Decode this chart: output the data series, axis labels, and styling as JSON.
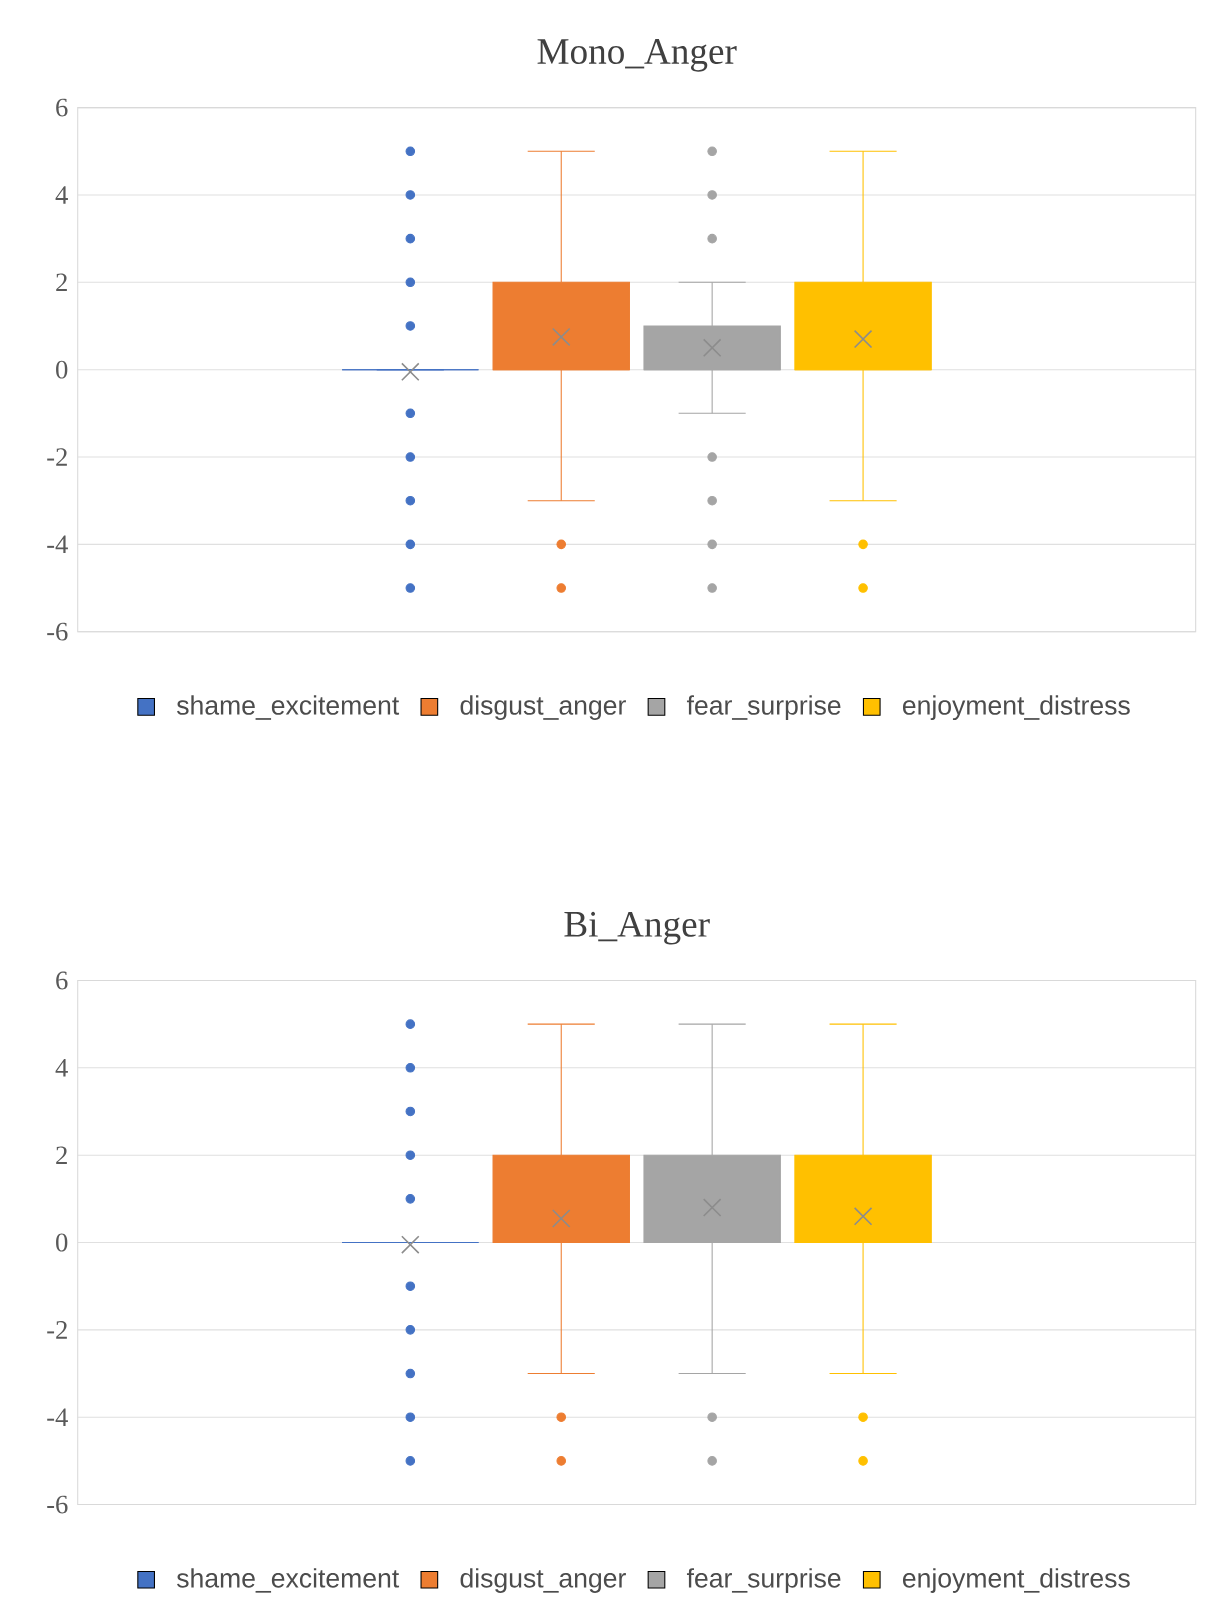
{
  "chart_data": [
    {
      "type": "box",
      "title": "Mono_Anger",
      "categories": [
        null
      ],
      "ylim": [
        -6,
        6
      ],
      "yticks": [
        -6,
        -4,
        -2,
        0,
        2,
        4,
        6
      ],
      "grid": "y",
      "legend": "bottom",
      "series": [
        {
          "name": "shame_excitement",
          "color": "#4472c4",
          "boxes": [
            {
              "low": 0,
              "q1": 0,
              "median": 0,
              "q3": 0,
              "high": 0,
              "mean": -0.05,
              "outliers": [
                5,
                4,
                3,
                2,
                1,
                -1,
                -2,
                -3,
                -4,
                -5
              ]
            }
          ]
        },
        {
          "name": "disgust_anger",
          "color": "#ed7d31",
          "boxes": [
            {
              "low": -3,
              "q1": 0,
              "median": 0,
              "q3": 2,
              "high": 5,
              "mean": 0.75,
              "outliers": [
                -4,
                -5
              ]
            }
          ]
        },
        {
          "name": "fear_surprise",
          "color": "#a5a5a5",
          "boxes": [
            {
              "low": -1,
              "q1": 0,
              "median": 0,
              "q3": 1,
              "high": 2,
              "mean": 0.5,
              "outliers": [
                5,
                4,
                3,
                -2,
                -3,
                -4,
                -5
              ]
            }
          ]
        },
        {
          "name": "enjoyment_distress",
          "color": "#ffc000",
          "boxes": [
            {
              "low": -3,
              "q1": 0,
              "median": 0,
              "q3": 2,
              "high": 5,
              "mean": 0.7,
              "outliers": [
                -4,
                -5
              ]
            }
          ]
        }
      ]
    },
    {
      "type": "box",
      "title": "Bi_Anger",
      "categories": [
        null
      ],
      "ylim": [
        -6,
        6
      ],
      "yticks": [
        -6,
        -4,
        -2,
        0,
        2,
        4,
        6
      ],
      "grid": "y",
      "legend": "bottom",
      "series": [
        {
          "name": "shame_excitement",
          "color": "#4472c4",
          "boxes": [
            {
              "low": 0,
              "q1": 0,
              "median": 0,
              "q3": 0,
              "high": 0,
              "mean": -0.05,
              "outliers": [
                5,
                4,
                3,
                2,
                1,
                -1,
                -2,
                -3,
                -4,
                -5
              ]
            }
          ]
        },
        {
          "name": "disgust_anger",
          "color": "#ed7d31",
          "boxes": [
            {
              "low": -3,
              "q1": 0,
              "median": 0,
              "q3": 2,
              "high": 5,
              "mean": 0.55,
              "outliers": [
                -4,
                -5
              ]
            }
          ]
        },
        {
          "name": "fear_surprise",
          "color": "#a5a5a5",
          "boxes": [
            {
              "low": -3,
              "q1": 0,
              "median": 0,
              "q3": 2,
              "high": 5,
              "mean": 0.8,
              "outliers": [
                -4,
                -5
              ]
            }
          ]
        },
        {
          "name": "enjoyment_distress",
          "color": "#ffc000",
          "boxes": [
            {
              "low": -3,
              "q1": 0,
              "median": 0,
              "q3": 2,
              "high": 5,
              "mean": 0.6,
              "outliers": [
                -4,
                -5
              ]
            }
          ]
        }
      ]
    }
  ]
}
